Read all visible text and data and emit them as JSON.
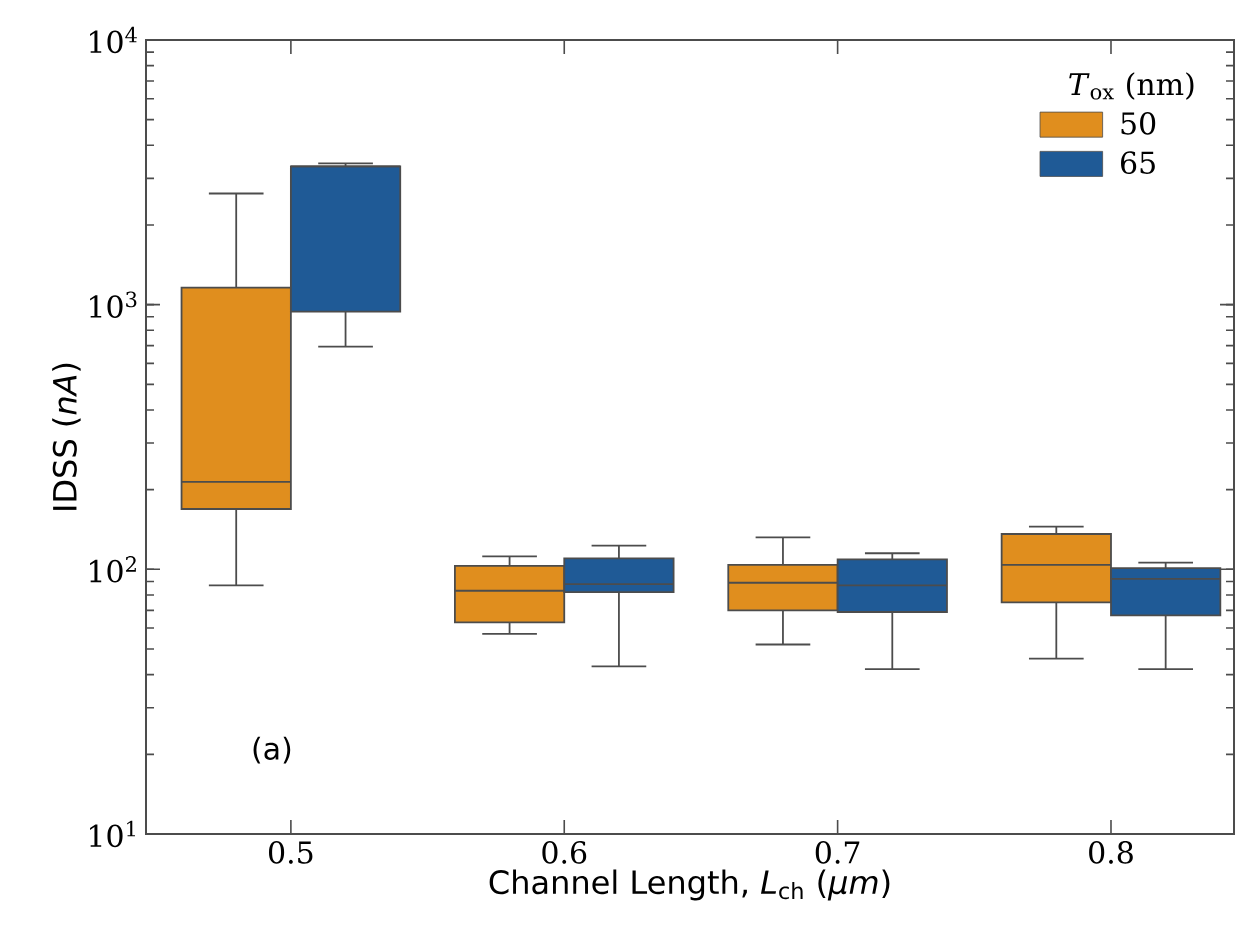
{
  "chart_data": {
    "type": "box",
    "xlabel": "Channel Length, *L*$_{ch}$ (*μm*)",
    "ylabel": "IDSS (*nA*)",
    "legend_title": "*T*$_{ox}$ (nm)",
    "legend": "top right",
    "log": "y",
    "grid": false,
    "categories": [
      "0.5",
      "0.6",
      "0.7",
      "0.8"
    ],
    "ylim": [
      10,
      10000
    ],
    "yticks": [
      {
        "value": 10,
        "label": "10$^{1}$"
      },
      {
        "value": 100,
        "label": "10$^{2}$"
      },
      {
        "value": 1000,
        "label": "10$^{3}$"
      },
      {
        "value": 10000,
        "label": "10$^{4}$"
      }
    ],
    "annotations": [
      "(a)"
    ],
    "series": [
      {
        "name": "50",
        "color": "#e08e1e",
        "boxes": [
          {
            "low": 87,
            "q1": 169,
            "median": 214,
            "q3": 1160,
            "high": 2630
          },
          {
            "low": 57,
            "q1": 63,
            "median": 83,
            "q3": 103,
            "high": 112
          },
          {
            "low": 52,
            "q1": 70,
            "median": 89,
            "q3": 104,
            "high": 132
          },
          {
            "low": 46,
            "q1": 75,
            "median": 104,
            "q3": 136,
            "high": 145
          }
        ]
      },
      {
        "name": "65",
        "color": "#1f5a96",
        "boxes": [
          {
            "low": 694,
            "q1": 942,
            "median": 3330,
            "q3": 3330,
            "high": 3420
          },
          {
            "low": 43,
            "q1": 82,
            "median": 88,
            "q3": 110,
            "high": 123
          },
          {
            "low": 42,
            "q1": 69,
            "median": 87,
            "q3": 109,
            "high": 115
          },
          {
            "low": 42,
            "q1": 67,
            "median": 92,
            "q3": 101,
            "high": 106
          }
        ]
      }
    ]
  }
}
